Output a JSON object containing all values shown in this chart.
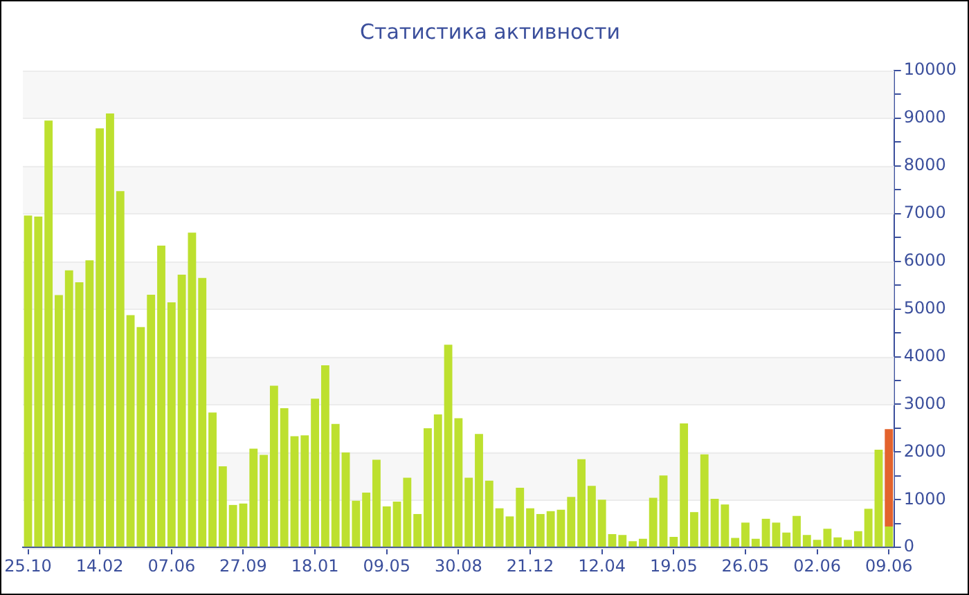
{
  "chart_data": {
    "type": "bar",
    "title": "Статистика активности",
    "stacked": true,
    "grid": "y",
    "legend": false,
    "categories": [
      "25.10",
      null,
      null,
      null,
      null,
      null,
      null,
      "14.02",
      null,
      null,
      null,
      null,
      null,
      null,
      "07.06",
      null,
      null,
      null,
      null,
      null,
      null,
      "27.09",
      null,
      null,
      null,
      null,
      null,
      null,
      "18.01",
      null,
      null,
      null,
      null,
      null,
      null,
      "09.05",
      null,
      null,
      null,
      null,
      null,
      null,
      "30.08",
      null,
      null,
      null,
      null,
      null,
      null,
      "21.12",
      null,
      null,
      null,
      null,
      null,
      null,
      "12.04",
      null,
      null,
      null,
      null,
      null,
      null,
      "19.05",
      null,
      null,
      null,
      null,
      null,
      null,
      "26.05",
      null,
      null,
      null,
      null,
      null,
      null,
      "02.06",
      null,
      null,
      null,
      null,
      null,
      null,
      "09.06"
    ],
    "series": [
      {
        "color": "#bde02f",
        "values": [
          6960,
          6940,
          8950,
          5290,
          5810,
          5560,
          6020,
          8790,
          9100,
          7470,
          4870,
          4620,
          5300,
          6330,
          5140,
          5720,
          6600,
          5650,
          2830,
          1700,
          890,
          920,
          2070,
          1940,
          3390,
          2920,
          2330,
          2350,
          3120,
          3820,
          2590,
          1990,
          980,
          1150,
          1840,
          860,
          960,
          1460,
          700,
          2500,
          2790,
          4250,
          2710,
          1460,
          2380,
          1400,
          820,
          650,
          1250,
          820,
          700,
          760,
          790,
          1060,
          1850,
          1290,
          1000,
          280,
          260,
          130,
          180,
          1040,
          1510,
          220,
          2600,
          740,
          1950,
          1020,
          900,
          200,
          520,
          180,
          600,
          520,
          310,
          660,
          260,
          160,
          390,
          210,
          160,
          340,
          810,
          2050,
          440
        ]
      },
      {
        "color": "#e3632d",
        "values": [
          null,
          null,
          null,
          null,
          null,
          null,
          null,
          null,
          null,
          null,
          null,
          null,
          null,
          null,
          null,
          null,
          null,
          null,
          null,
          null,
          null,
          null,
          null,
          null,
          null,
          null,
          null,
          null,
          null,
          null,
          null,
          null,
          null,
          null,
          null,
          null,
          null,
          null,
          null,
          null,
          null,
          null,
          null,
          null,
          null,
          null,
          null,
          null,
          null,
          null,
          null,
          null,
          null,
          null,
          null,
          null,
          null,
          null,
          null,
          null,
          null,
          null,
          null,
          null,
          null,
          null,
          null,
          null,
          null,
          null,
          null,
          null,
          null,
          null,
          null,
          null,
          null,
          null,
          null,
          null,
          null,
          null,
          null,
          null,
          2040
        ]
      }
    ],
    "ylim": [
      0,
      10000
    ],
    "yticks": [
      0,
      {
        "value": 500,
        "label": null
      },
      1000,
      {
        "value": 1500,
        "label": null
      },
      2000,
      {
        "value": 2500,
        "label": null
      },
      3000,
      {
        "value": 3500,
        "label": null
      },
      4000,
      {
        "value": 4500,
        "label": null
      },
      5000,
      {
        "value": 5500,
        "label": null
      },
      6000,
      {
        "value": 6500,
        "label": null
      },
      7000,
      {
        "value": 7500,
        "label": null
      },
      8000,
      {
        "value": 8500,
        "label": null
      },
      9000,
      {
        "value": 9500,
        "label": null
      },
      10000
    ]
  }
}
